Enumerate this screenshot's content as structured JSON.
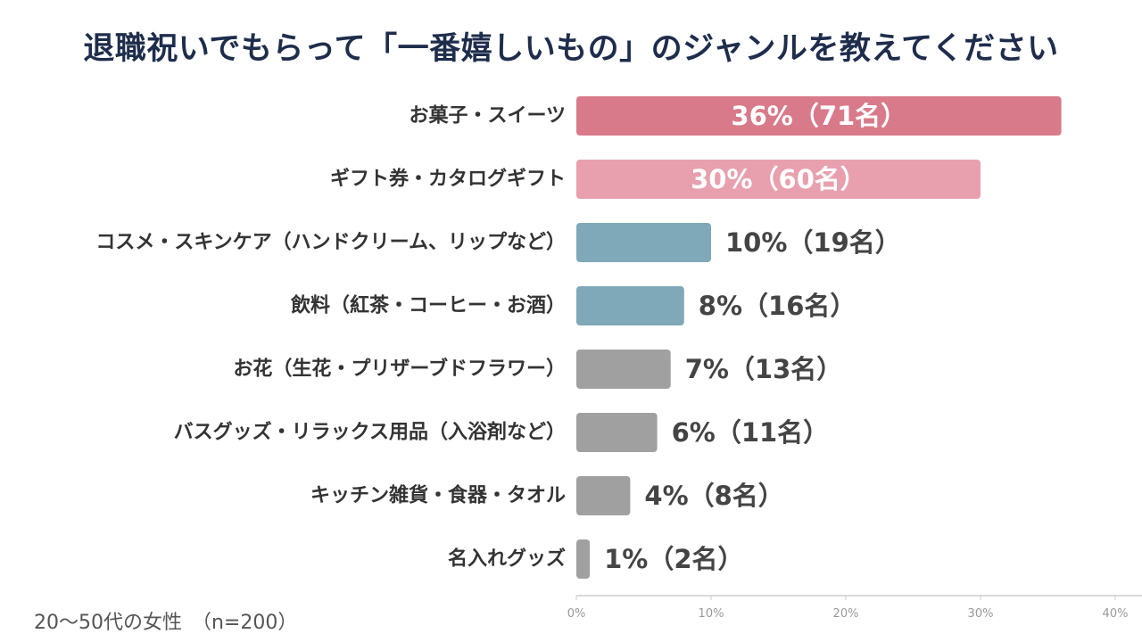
{
  "chart_data": {
    "type": "bar",
    "orientation": "horizontal",
    "title": "退職祝いでもらって「一番嬉しいもの」のジャンルを教えてください",
    "categories": [
      "お菓子・スイーツ",
      "ギフト券・カタログギフト",
      "コスメ・スキンケア（ハンドクリーム、リップなど）",
      "飲料（紅茶・コーヒー・お酒）",
      "お花（生花・プリザーブドフラワー）",
      "バスグッズ・リラックス用品（入浴剤など）",
      "キッチン雑貨・食器・タオル",
      "名入れグッズ"
    ],
    "values": [
      36,
      30,
      10,
      8,
      7,
      6,
      4,
      1
    ],
    "data_labels": [
      "36%（71名）",
      "30%（60名）",
      "10%（19名）",
      "8%（16名）",
      "7%（13名）",
      "6%（11名）",
      "4%（8名）",
      "1%（2名）"
    ],
    "bar_colors": [
      "#d87a8a",
      "#e8a0ae",
      "#7fa8b8",
      "#7fa8b8",
      "#a0a0a0",
      "#a0a0a0",
      "#a0a0a0",
      "#a0a0a0"
    ],
    "label_inside": [
      true,
      true,
      false,
      false,
      false,
      false,
      false,
      false
    ],
    "xlim": [
      0,
      40
    ],
    "x_ticks": [
      "0%",
      "10%",
      "20%",
      "30%",
      "40%"
    ],
    "grid": false,
    "legend": "none",
    "note": "20〜50代の女性　（n=200）"
  },
  "colors": {
    "title": "#1f2d4c",
    "category_text": "#333333",
    "value_text_outside": "#444444",
    "value_text_inside": "#ffffff",
    "axis": "#cccccc",
    "tick_text": "#999999"
  }
}
